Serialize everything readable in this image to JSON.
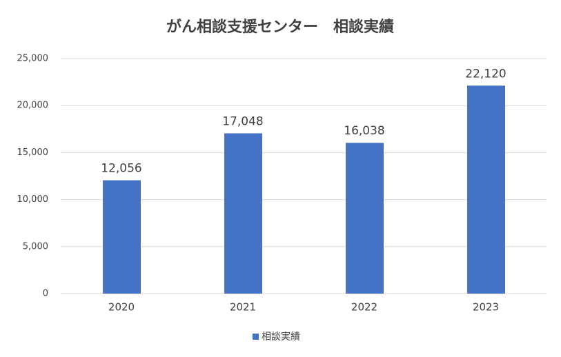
{
  "chart_data": {
    "type": "bar",
    "title": "がん相談支援センター　相談実績",
    "categories": [
      "2020",
      "2021",
      "2022",
      "2023"
    ],
    "series": [
      {
        "name": "相談実績",
        "color": "#4472c4",
        "values": [
          12056,
          17048,
          16038,
          22120
        ],
        "value_labels": [
          "12,056",
          "17,048",
          "16,038",
          "22,120"
        ]
      }
    ],
    "ylim": [
      0,
      25000
    ],
    "yticks": [
      0,
      {
        "value": 5000,
        "label": "5,000"
      },
      {
        "value": 10000,
        "label": "10,000"
      },
      {
        "value": 15000,
        "label": "15,000"
      },
      {
        "value": 20000,
        "label": "20,000"
      },
      {
        "value": 25000,
        "label": "25,000"
      }
    ],
    "grid": true,
    "legend": "bottom"
  }
}
